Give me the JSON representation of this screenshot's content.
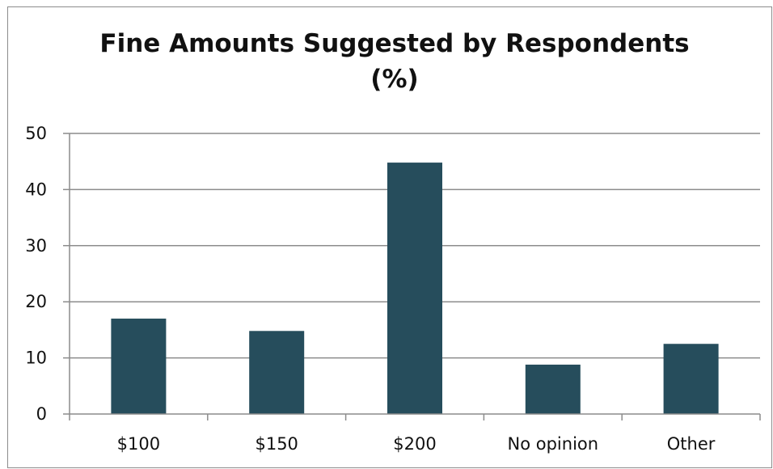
{
  "chart_data": {
    "type": "bar",
    "title": "Fine Amounts Suggested by  Respondents\n(%)",
    "xlabel": "",
    "ylabel": "",
    "categories": [
      "$100",
      "$150",
      "$200",
      "No opinion",
      "Other"
    ],
    "values": [
      17,
      14.8,
      44.8,
      8.8,
      12.5
    ],
    "ylim": [
      0,
      50
    ],
    "yticks": [
      "0",
      "10",
      "20",
      "30",
      "40",
      "50"
    ],
    "grid": true,
    "legend": "none",
    "bar_color": "#264d5c",
    "grid_color": "#8c8c8c"
  }
}
